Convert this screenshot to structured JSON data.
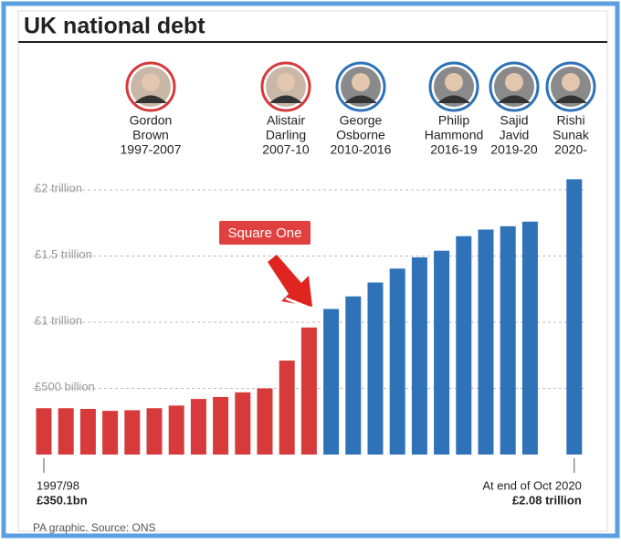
{
  "chart_data": {
    "type": "bar",
    "title": "UK national debt",
    "categories": [
      "1997/98",
      null,
      null,
      null,
      null,
      null,
      null,
      null,
      null,
      null,
      null,
      null,
      null,
      null,
      null,
      null,
      null,
      null,
      null,
      null,
      null,
      null,
      null,
      null,
      "At end of Oct 2020"
    ],
    "values": [
      350.1,
      350,
      345,
      330,
      335,
      350,
      370,
      420,
      435,
      470,
      500,
      710,
      960,
      1100,
      1195,
      1300,
      1405,
      1490,
      1540,
      1650,
      1700,
      1725,
      1760,
      null,
      2080
    ],
    "value_labels": [
      "£350.1bn",
      null,
      null,
      null,
      null,
      null,
      null,
      null,
      null,
      null,
      null,
      null,
      null,
      null,
      null,
      null,
      null,
      null,
      null,
      null,
      null,
      null,
      null,
      null,
      "£2.08 trillion"
    ],
    "colors": [
      "#d63a3a",
      "#d63a3a",
      "#d63a3a",
      "#d63a3a",
      "#d63a3a",
      "#d63a3a",
      "#d63a3a",
      "#d63a3a",
      "#d63a3a",
      "#d63a3a",
      "#d63a3a",
      "#d63a3a",
      "#d63a3a",
      "#2f72b8",
      "#2f72b8",
      "#2f72b8",
      "#2f72b8",
      "#2f72b8",
      "#2f72b8",
      "#2f72b8",
      "#2f72b8",
      "#2f72b8",
      "#2f72b8",
      "#2f72b8",
      "#2f72b8"
    ],
    "ylim": [
      0,
      2100
    ],
    "yticks": [
      {
        "value": 500,
        "label": "£500 billion"
      },
      {
        "value": 1000,
        "label": "£1 trillion"
      },
      {
        "value": 1500,
        "label": "£1.5 trillion"
      },
      {
        "value": 2000,
        "label": "£2 trillion"
      }
    ],
    "grid": true,
    "annotation": "Square One",
    "source": "PA graphic. Source: ONS",
    "chancellors": [
      {
        "name": [
          "Gordon",
          "Brown"
        ],
        "years": "1997-2007"
      },
      {
        "name": [
          "Alistair",
          "Darling"
        ],
        "years": "2007-10"
      },
      {
        "name": [
          "George",
          "Osborne"
        ],
        "years": "2010-2016"
      },
      {
        "name": [
          "Philip",
          "Hammond"
        ],
        "years": "2016-19"
      },
      {
        "name": [
          "Sajid",
          "Javid"
        ],
        "years": "2019-20"
      },
      {
        "name": [
          "Rishi",
          "Sunak"
        ],
        "years": "2020-"
      }
    ]
  }
}
